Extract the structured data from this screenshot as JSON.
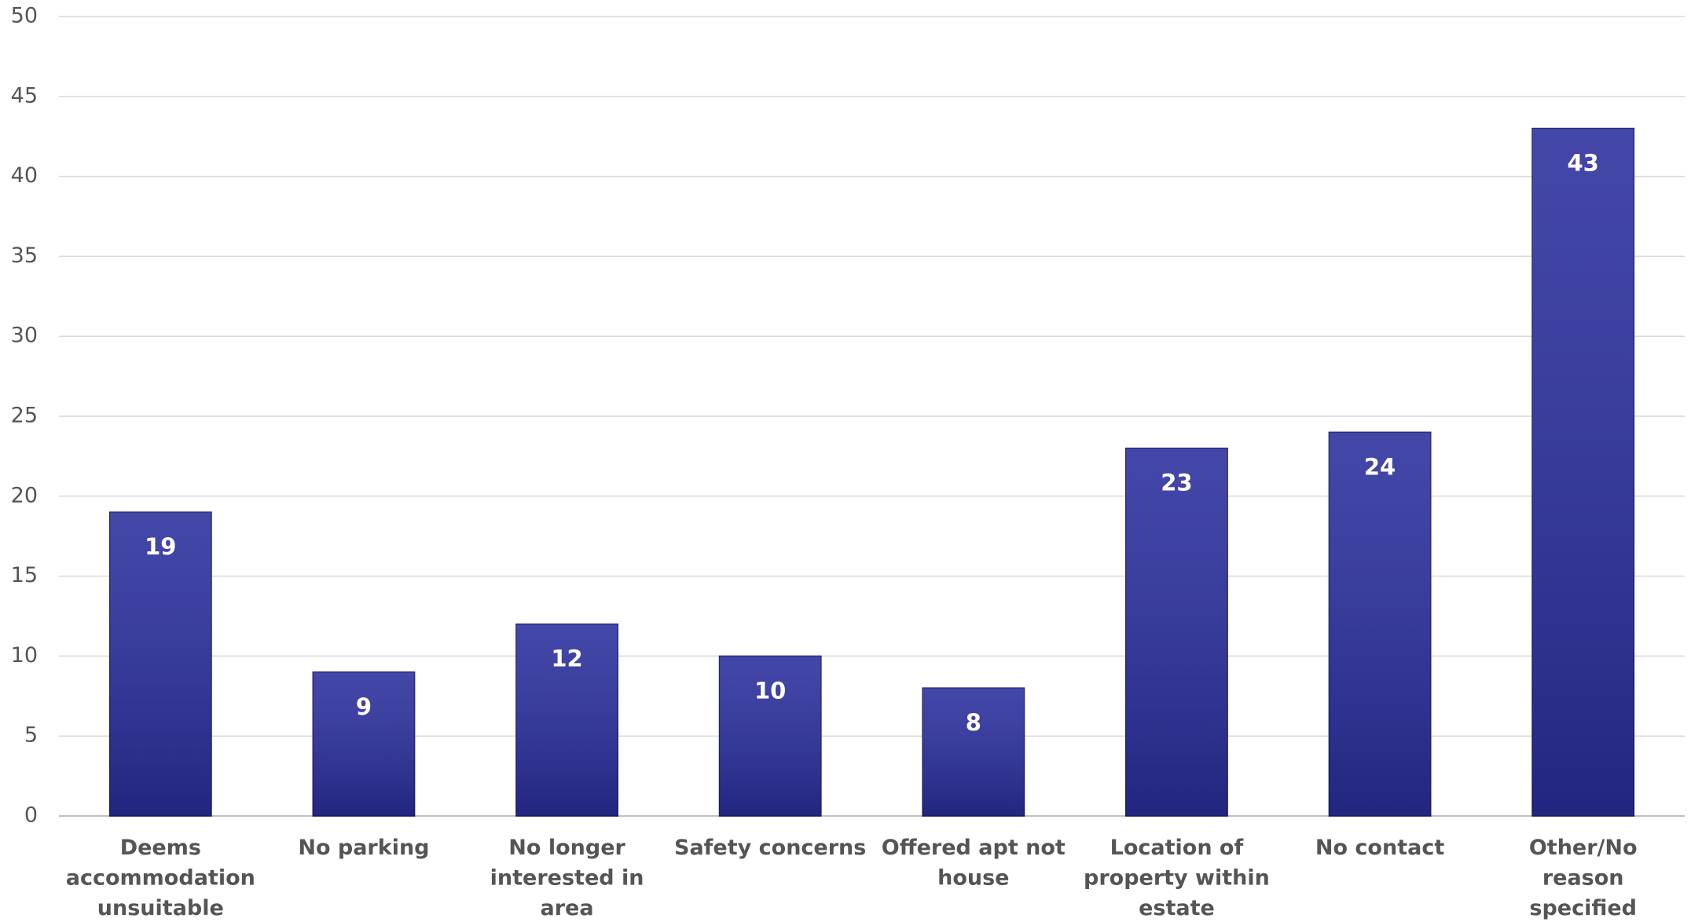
{
  "chart_data": {
    "type": "bar",
    "categories": [
      "Deems accommodation unsuitable",
      "No parking",
      "No longer interested in area",
      "Safety concerns",
      "Offered apt not house",
      "Location of property within estate",
      "No contact",
      "Other/No reason specified"
    ],
    "values": [
      19,
      9,
      12,
      10,
      8,
      23,
      24,
      43
    ],
    "color": "#2a2e9c",
    "ylim": [
      0,
      50
    ],
    "yticks": [
      0,
      5,
      10,
      15,
      20,
      25,
      30,
      35,
      40,
      45,
      50
    ],
    "grid": true
  }
}
